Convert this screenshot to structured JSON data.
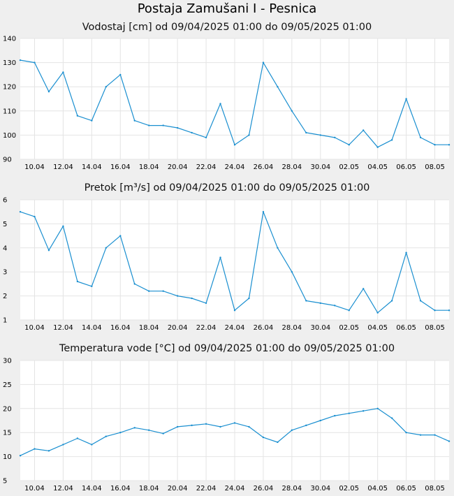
{
  "page_title": "Postaja Zamušani I - Pesnica",
  "colors": {
    "line": "#1a8fd0",
    "grid": "#e4e4e4",
    "plot_bg": "#ffffff",
    "page_bg": "#efefef"
  },
  "x_ticks": [
    "10.04",
    "12.04",
    "14.04",
    "16.04",
    "18.04",
    "20.04",
    "22.04",
    "24.04",
    "26.04",
    "28.04",
    "30.04",
    "02.05",
    "04.05",
    "06.05",
    "08.05"
  ],
  "chart_data": [
    {
      "type": "line",
      "title": "Vodostaj [cm] od 09/04/2025 01:00 do 09/05/2025 01:00",
      "ylim": [
        90,
        140
      ],
      "yticks": [
        90,
        100,
        110,
        120,
        130,
        140
      ],
      "x": [
        "09.04",
        "10.04",
        "11.04",
        "12.04",
        "13.04",
        "14.04",
        "15.04",
        "16.04",
        "17.04",
        "18.04",
        "19.04",
        "20.04",
        "21.04",
        "22.04",
        "23.04",
        "24.04",
        "25.04",
        "26.04",
        "27.04",
        "28.04",
        "29.04",
        "30.04",
        "01.05",
        "02.05",
        "03.05",
        "04.05",
        "05.05",
        "06.05",
        "07.05",
        "08.05",
        "09.05"
      ],
      "values": [
        131,
        130,
        118,
        126,
        108,
        106,
        120,
        125,
        106,
        104,
        104,
        103,
        101,
        99,
        113,
        96,
        100,
        130,
        120,
        110,
        101,
        100,
        99,
        96,
        102,
        95,
        98,
        115,
        99,
        96,
        96
      ]
    },
    {
      "type": "line",
      "title": "Pretok [m³/s] od 09/04/2025 01:00 do 09/05/2025 01:00",
      "ylim": [
        1,
        6
      ],
      "yticks": [
        1,
        2,
        3,
        4,
        5,
        6
      ],
      "x": [
        "09.04",
        "10.04",
        "11.04",
        "12.04",
        "13.04",
        "14.04",
        "15.04",
        "16.04",
        "17.04",
        "18.04",
        "19.04",
        "20.04",
        "21.04",
        "22.04",
        "23.04",
        "24.04",
        "25.04",
        "26.04",
        "27.04",
        "28.04",
        "29.04",
        "30.04",
        "01.05",
        "02.05",
        "03.05",
        "04.05",
        "05.05",
        "06.05",
        "07.05",
        "08.05",
        "09.05"
      ],
      "values": [
        5.5,
        5.3,
        3.9,
        4.9,
        2.6,
        2.4,
        4.0,
        4.5,
        2.5,
        2.2,
        2.2,
        2.0,
        1.9,
        1.7,
        3.6,
        1.4,
        1.9,
        5.5,
        4.0,
        3.0,
        1.8,
        1.7,
        1.6,
        1.4,
        2.3,
        1.3,
        1.8,
        3.8,
        1.8,
        1.4,
        1.4
      ]
    },
    {
      "type": "line",
      "title": "Temperatura vode [°C] od 09/04/2025 01:00 do 09/05/2025 01:00",
      "ylim": [
        5,
        30
      ],
      "yticks": [
        5,
        10,
        15,
        20,
        25,
        30
      ],
      "x": [
        "09.04",
        "10.04",
        "11.04",
        "12.04",
        "13.04",
        "14.04",
        "15.04",
        "16.04",
        "17.04",
        "18.04",
        "19.04",
        "20.04",
        "21.04",
        "22.04",
        "23.04",
        "24.04",
        "25.04",
        "26.04",
        "27.04",
        "28.04",
        "29.04",
        "30.04",
        "01.05",
        "02.05",
        "03.05",
        "04.05",
        "05.05",
        "06.05",
        "07.05",
        "08.05",
        "09.05"
      ],
      "values": [
        10.2,
        11.6,
        11.2,
        12.5,
        13.8,
        12.5,
        14.2,
        15.0,
        16.0,
        15.5,
        14.8,
        16.2,
        16.5,
        16.8,
        16.2,
        17.0,
        16.2,
        14.0,
        13.0,
        15.5,
        16.5,
        17.5,
        18.5,
        19.0,
        19.5,
        20.0,
        18.0,
        15.0,
        14.5,
        14.5,
        13.2
      ]
    }
  ]
}
